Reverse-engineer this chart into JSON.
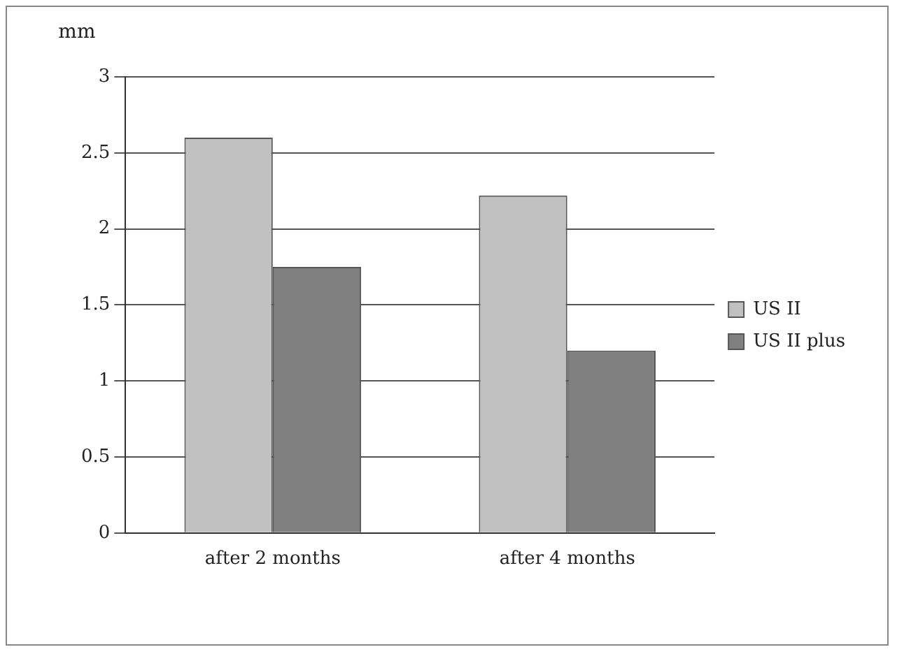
{
  "chart_data": {
    "type": "bar",
    "ylabel": "mm",
    "categories": [
      "after 2 months",
      "after 4 months"
    ],
    "series": [
      {
        "name": "US II",
        "color": "#c0c0c0",
        "values": [
          2.6,
          2.22
        ]
      },
      {
        "name": "US II plus",
        "color": "#808080",
        "values": [
          1.75,
          1.2
        ]
      }
    ],
    "ylim": [
      0,
      3
    ],
    "yticks": [
      0,
      0.5,
      1,
      1.5,
      2,
      2.5,
      3
    ],
    "grid": "y",
    "legend": "right"
  }
}
